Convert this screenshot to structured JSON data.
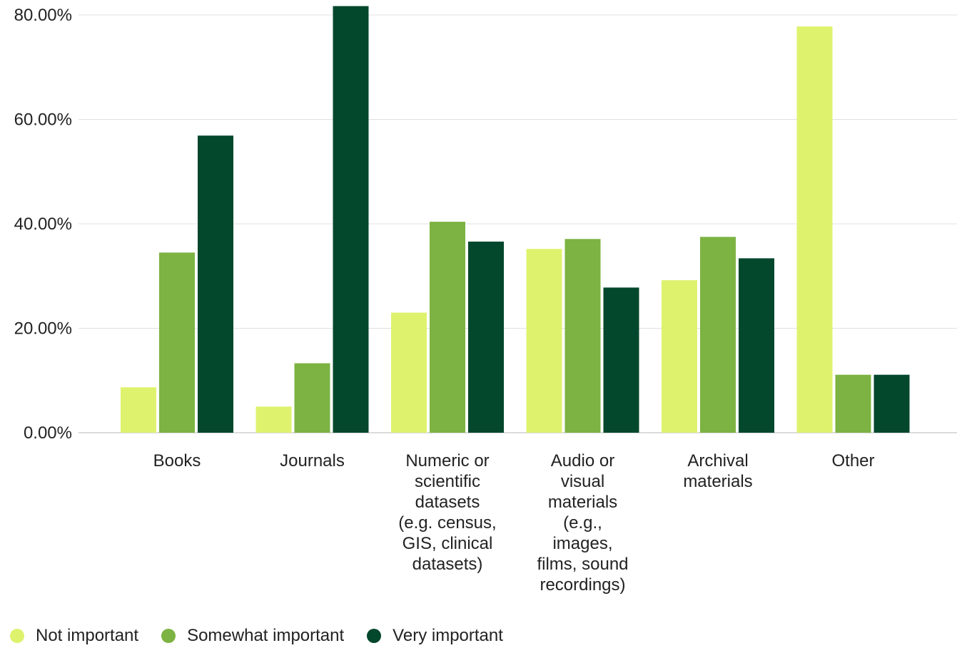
{
  "chart_data": {
    "type": "bar",
    "categories": [
      "Books",
      "Journals",
      "Numeric or scientific datasets (e.g. census, GIS, clinical datasets)",
      "Audio or visual materials (e.g., images, films, sound recordings)",
      "Archival materials",
      "Other"
    ],
    "category_lines": [
      [
        "Books"
      ],
      [
        "Journals"
      ],
      [
        "Numeric or",
        "scientific",
        "datasets",
        "(e.g. census,",
        "GIS, clinical",
        "datasets)"
      ],
      [
        "Audio or",
        "visual",
        "materials",
        "(e.g.,",
        "images,",
        "films, sound",
        "recordings)"
      ],
      [
        "Archival",
        "materials"
      ],
      [
        "Other"
      ]
    ],
    "series": [
      {
        "name": "Not important",
        "color": "#dff26e",
        "values": [
          8.7,
          5.0,
          23.0,
          35.2,
          29.2,
          77.8
        ]
      },
      {
        "name": "Somewhat important",
        "color": "#7cb342",
        "values": [
          34.5,
          13.3,
          40.4,
          37.1,
          37.5,
          11.1
        ]
      },
      {
        "name": "Very important",
        "color": "#03472c",
        "values": [
          56.9,
          81.7,
          36.6,
          27.8,
          33.4,
          11.1
        ]
      }
    ],
    "y_ticks": [
      "0.00%",
      "20.00%",
      "40.00%",
      "60.00%",
      "80.00%"
    ],
    "y_tick_values": [
      0,
      20,
      40,
      60,
      80
    ],
    "ylim": [
      0,
      80
    ],
    "grid": true,
    "legend_position": "bottom-left",
    "title": "",
    "xlabel": "",
    "ylabel": ""
  }
}
